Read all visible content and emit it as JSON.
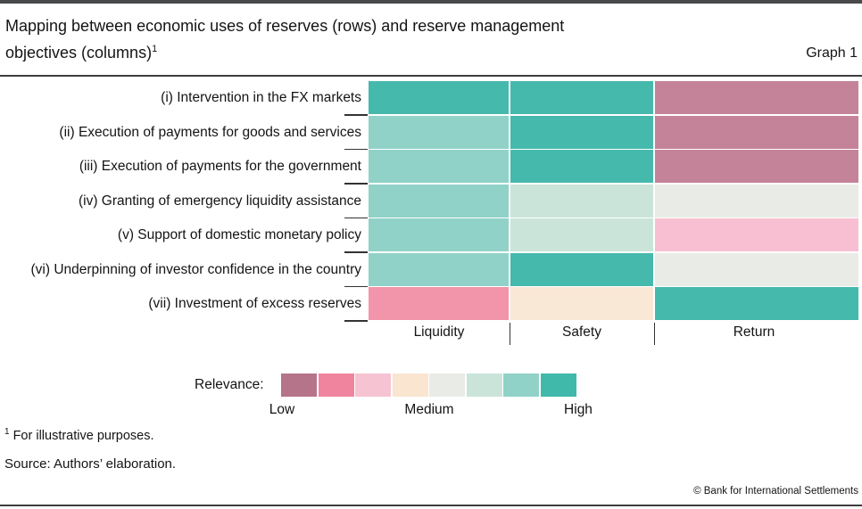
{
  "header": {
    "title_line1": "Mapping between economic uses of reserves (rows) and reserve management",
    "title_line2": "objectives (columns)",
    "title_footnote_marker": "1",
    "graph_label": "Graph 1"
  },
  "chart_data": {
    "type": "heatmap",
    "title": "Mapping between economic uses of reserves (rows) and reserve management objectives (columns)",
    "columns": [
      "Liquidity",
      "Safety",
      "Return"
    ],
    "rows": [
      {
        "label": "(i) Intervention in the FX markets",
        "levels": [
          8,
          8,
          1
        ],
        "colors": [
          "#45b9ab",
          "#45b9ab",
          "#c48399"
        ]
      },
      {
        "label": "(ii) Execution of payments for goods and services",
        "levels": [
          7,
          8,
          1
        ],
        "colors": [
          "#90d1c8",
          "#45b9ab",
          "#c48399"
        ]
      },
      {
        "label": "(iii) Execution of payments for the government",
        "levels": [
          7,
          8,
          1
        ],
        "colors": [
          "#90d1c8",
          "#45b9ab",
          "#c48399"
        ]
      },
      {
        "label": "(iv) Granting of emergency liquidity assistance",
        "levels": [
          7,
          6,
          5
        ],
        "colors": [
          "#90d1c8",
          "#cbe4da",
          "#e9ebe7"
        ]
      },
      {
        "label": "(v) Support of domestic monetary policy",
        "levels": [
          7,
          6,
          3
        ],
        "colors": [
          "#90d1c8",
          "#cbe4da",
          "#f8bed1"
        ]
      },
      {
        "label": "(vi) Underpinning of investor confidence in the country",
        "levels": [
          7,
          8,
          5
        ],
        "colors": [
          "#90d1c8",
          "#45b9ab",
          "#e9ebe7"
        ]
      },
      {
        "label": "(vii) Investment of excess reserves",
        "levels": [
          2,
          4,
          8
        ],
        "colors": [
          "#f294aa",
          "#fae8d6",
          "#45b9ab"
        ]
      }
    ],
    "legend": {
      "label": "Relevance:",
      "scale_labels": [
        "Low",
        "Medium",
        "High"
      ],
      "swatches": [
        "#b57489",
        "#f0849e",
        "#f6c3d3",
        "#fae6d0",
        "#e9ebe7",
        "#cbe4da",
        "#90d1c8",
        "#40b9ab"
      ]
    },
    "layout": {
      "legend_position": "bottom",
      "grid": false,
      "row_axis": "economic uses of reserves",
      "column_axis": "reserve management objectives"
    }
  },
  "footnote": {
    "marker": "1",
    "text": "For illustrative purposes."
  },
  "source": "Source: Authors’ elaboration.",
  "footer": {
    "copyright": "© Bank for International Settlements"
  }
}
